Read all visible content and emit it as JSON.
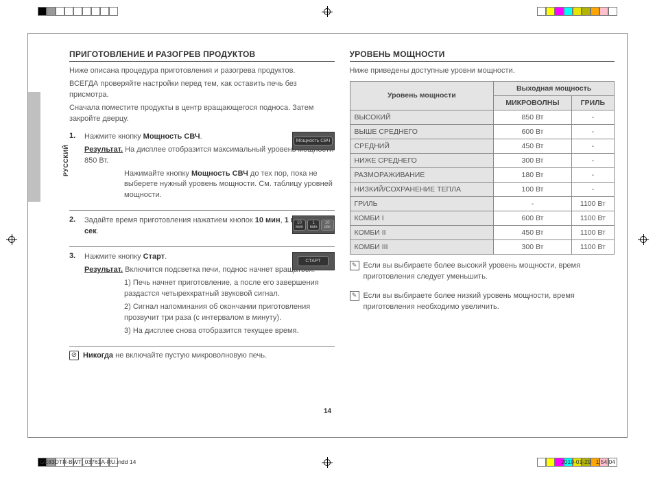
{
  "colorbars": {
    "tl": [
      "#000000",
      "#999999",
      "#ffffff",
      "#ffffff",
      "#ffffff",
      "#ffffff",
      "#ffffff",
      "#ffffff",
      "#ffffff"
    ],
    "tr": [
      "#ffffff",
      "#ffff00",
      "#ff00ff",
      "#00ffff",
      "#e6e600",
      "#b3b300",
      "#ffa500",
      "#ffc0cb",
      "#ffffff"
    ],
    "bl": [
      "#000000",
      "#999999",
      "#ffffff",
      "#ffffff",
      "#ffffff",
      "#ffffff",
      "#ffffff",
      "#ffffff",
      "#ffffff"
    ],
    "br": [
      "#ffffff",
      "#ffff00",
      "#ff00ff",
      "#00ffff",
      "#e6e600",
      "#b3b300",
      "#ffa500",
      "#ffc0cb",
      "#ffffff"
    ]
  },
  "lang": "РУССКИЙ",
  "left": {
    "title": "ПРИГОТОВЛЕНИЕ И РАЗОГРЕВ ПРОДУКТОВ",
    "intro1": "Ниже описана процедура приготовления и разогрева продуктов.",
    "intro2": "ВСЕГДА проверяйте настройки перед тем, как оставить печь без присмотра.",
    "intro3": "Сначала поместите продукты в центр вращающегося подноса. Затем закройте дверцу.",
    "steps": [
      {
        "n": "1.",
        "lead": "Нажмите кнопку ",
        "bold1": "Мощность СВЧ",
        "tail1": ".",
        "result_label": "Результат.",
        "result_text": " На дисплее отобразится максимальный уровень мощности 850 Вт.",
        "cont": "Нажимайте кнопку ",
        "bold2": "Мощность СВЧ",
        "cont2": " до тех пор, пока не выберете нужный уровень мощности. См. таблицу уровней мощности.",
        "illus": "Мощность СВЧ"
      },
      {
        "n": "2.",
        "lead": "Задайте время приготовления нажатием кнопок ",
        "bold1": "10 мин",
        "mid": ", ",
        "bold2": "1 мин",
        "mid2": " и ",
        "bold3": "10 сек",
        "tail": ".",
        "illus_labels": [
          "10 мин",
          "1 мин",
          "10 сек"
        ]
      },
      {
        "n": "3.",
        "lead": "Нажмите кнопку ",
        "bold1": "Старт",
        "tail1": ".",
        "result_label": "Результат.",
        "result_text": " Включится подсветка печи, поднос начнет вращаться.",
        "items": [
          "1)  Печь начнет приготовление, а после его завершения раздастся четырехкратный звуковой сигнал.",
          "2)  Сигнал напоминания об окончании приготовления прозвучит три раза (с интервалом в минуту).",
          "3)  На дисплее снова отобразится текущее время."
        ],
        "illus": "СТАРТ"
      }
    ],
    "warning_bold": "Никогда",
    "warning_text": " не включайте пустую микроволновую печь."
  },
  "right": {
    "title": "УРОВЕНЬ МОЩНОСТИ",
    "intro": "Ниже приведены доступные уровни мощности.",
    "header1": "Уровень мощности",
    "header2": "Выходная мощность",
    "sub1": "МИКРОВОЛНЫ",
    "sub2": "ГРИЛЬ",
    "rows": [
      [
        "ВЫСОКИЙ",
        "850 Вт",
        "-"
      ],
      [
        "ВЫШЕ СРЕДНЕГО",
        "600 Вт",
        "-"
      ],
      [
        "СРЕДНИЙ",
        "450 Вт",
        "-"
      ],
      [
        "НИЖЕ СРЕДНЕГО",
        "300 Вт",
        "-"
      ],
      [
        "РАЗМОРАЖИВАНИЕ",
        "180 Вт",
        "-"
      ],
      [
        "НИЗКИЙ/СОХРАНЕНИЕ ТЕПЛА",
        "100 Вт",
        "-"
      ],
      [
        "ГРИЛЬ",
        "-",
        "1100 Вт"
      ],
      [
        "КОМБИ I",
        "600 Вт",
        "1100 Вт"
      ],
      [
        "КОМБИ II",
        "450 Вт",
        "1100 Вт"
      ],
      [
        "КОМБИ III",
        "300 Вт",
        "1100 Вт"
      ]
    ],
    "note1": "Если вы выбираете более высокий уровень мощности, время приготовления следует уменьшить.",
    "note2": "Если вы выбираете более низкий уровень мощности, время приготовления необходимо увеличить."
  },
  "pagenum": "14",
  "footer_left": "GE83DTR-BWT_03761A-RU.indd   14",
  "footer_date": "2010-01-29",
  "footer_time": "1:54:04"
}
